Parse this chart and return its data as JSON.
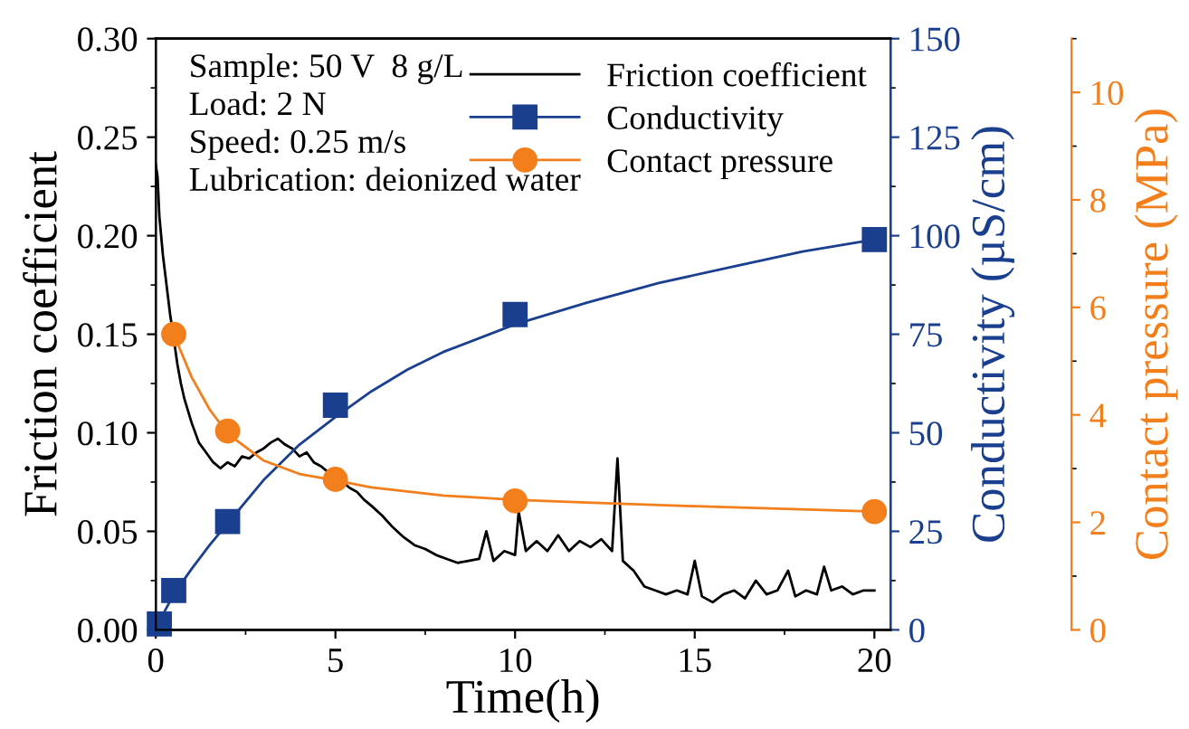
{
  "chart_data": {
    "type": "line",
    "xlabel": "Time(h)",
    "ylabel": "Friction coefficient",
    "y2label": "Conductivity (µS/cm)",
    "y3label": "Contact pressure (MPa)",
    "annotations": [
      "Sample: 50 V  8 g/L",
      "Load: 2 N",
      "Speed: 0.25 m/s",
      "Lubrication: deionized water"
    ],
    "xlim": [
      0,
      20.45
    ],
    "xticks": [
      0,
      5,
      10,
      15,
      20
    ],
    "ylim": [
      0,
      0.3
    ],
    "yticks": [
      {
        "value": 0,
        "label": "0.00"
      },
      {
        "value": 0.05,
        "label": "0.05"
      },
      {
        "value": 0.1,
        "label": "0.10"
      },
      {
        "value": 0.15,
        "label": "0.15"
      },
      {
        "value": 0.2,
        "label": "0.20"
      },
      {
        "value": 0.25,
        "label": "0.25"
      },
      {
        "value": 0.3,
        "label": "0.30"
      }
    ],
    "y2lim": [
      0,
      150
    ],
    "y2ticks": [
      0,
      25,
      50,
      75,
      100,
      125,
      150
    ],
    "y3lim": [
      0,
      11
    ],
    "y3ticks": [
      0,
      2,
      4,
      6,
      8,
      10
    ],
    "legend": "top right",
    "grid": false,
    "series": [
      {
        "name": "Friction coefficient",
        "color": "#000000",
        "axis": "y",
        "marker": "none",
        "line_style": "solid",
        "x": [
          0,
          0.05,
          0.1,
          0.2,
          0.3,
          0.4,
          0.5,
          0.6,
          0.7,
          0.8,
          1.0,
          1.2,
          1.4,
          1.6,
          1.8,
          2.0,
          2.2,
          2.4,
          2.6,
          2.8,
          3.0,
          3.2,
          3.4,
          3.6,
          3.8,
          4.0,
          4.2,
          4.4,
          4.6,
          4.8,
          5.0,
          5.2,
          5.4,
          5.6,
          5.8,
          6.0,
          6.3,
          6.6,
          6.9,
          7.2,
          7.5,
          7.8,
          8.1,
          8.4,
          8.7,
          9.0,
          9.2,
          9.4,
          9.7,
          10.0,
          10.1,
          10.3,
          10.6,
          10.9,
          11.2,
          11.5,
          11.8,
          12.1,
          12.4,
          12.7,
          12.85,
          13.0,
          13.3,
          13.6,
          13.9,
          14.2,
          14.5,
          14.8,
          15.0,
          15.2,
          15.5,
          15.8,
          16.1,
          16.4,
          16.7,
          17.0,
          17.3,
          17.6,
          17.8,
          18.1,
          18.4,
          18.6,
          18.8,
          19.1,
          19.4,
          19.7,
          20.0
        ],
        "values": [
          0.236,
          0.23,
          0.21,
          0.19,
          0.175,
          0.16,
          0.148,
          0.135,
          0.125,
          0.117,
          0.105,
          0.095,
          0.09,
          0.085,
          0.082,
          0.085,
          0.083,
          0.088,
          0.087,
          0.09,
          0.092,
          0.095,
          0.097,
          0.094,
          0.092,
          0.088,
          0.09,
          0.085,
          0.083,
          0.08,
          0.08,
          0.075,
          0.072,
          0.07,
          0.066,
          0.063,
          0.058,
          0.052,
          0.047,
          0.043,
          0.041,
          0.038,
          0.036,
          0.034,
          0.035,
          0.036,
          0.05,
          0.035,
          0.04,
          0.038,
          0.06,
          0.04,
          0.045,
          0.04,
          0.048,
          0.04,
          0.045,
          0.042,
          0.046,
          0.04,
          0.087,
          0.035,
          0.03,
          0.022,
          0.02,
          0.018,
          0.02,
          0.018,
          0.035,
          0.017,
          0.014,
          0.018,
          0.02,
          0.016,
          0.025,
          0.018,
          0.02,
          0.03,
          0.017,
          0.02,
          0.018,
          0.032,
          0.02,
          0.022,
          0.018,
          0.02,
          0.02
        ]
      },
      {
        "type": "line",
        "color": "#1a3f8f",
        "axis": "y2",
        "marker": "none",
        "line_style": "solid",
        "x": [
          0,
          0.5,
          1,
          1.5,
          2,
          3,
          4,
          5,
          6,
          7,
          8,
          10,
          12,
          14,
          16,
          18,
          20
        ],
        "values": [
          0.5,
          9,
          15.5,
          21.5,
          27,
          38,
          47,
          54,
          60.5,
          66,
          70.5,
          77.5,
          83,
          88,
          92,
          96,
          99
        ]
      },
      {
        "type": "line",
        "color": "#f27f1b",
        "axis": "y3",
        "marker": "none",
        "line_style": "solid",
        "x": [
          0.5,
          1,
          1.5,
          2,
          3,
          4,
          5,
          6,
          8,
          10,
          12,
          15,
          20
        ],
        "values": [
          5.5,
          4.7,
          4.1,
          3.65,
          3.15,
          2.9,
          2.78,
          2.65,
          2.5,
          2.42,
          2.37,
          2.3,
          2.2
        ]
      },
      {
        "type": "scatter",
        "name": "Conductivity",
        "color": "#1a3f8f",
        "axis": "y2",
        "marker": "square",
        "line_style": "solid",
        "x": [
          0.1,
          0.5,
          2,
          5,
          10,
          20
        ],
        "values": [
          1.5,
          10,
          27.5,
          57,
          80,
          99
        ]
      },
      {
        "type": "scatter",
        "name": "Contact pressure",
        "color": "#f27f1b",
        "axis": "y3",
        "marker": "circle",
        "line_style": "solid",
        "x": [
          0.5,
          2,
          5,
          10,
          20
        ],
        "values": [
          5.5,
          3.7,
          2.8,
          2.4,
          2.2
        ]
      }
    ]
  }
}
